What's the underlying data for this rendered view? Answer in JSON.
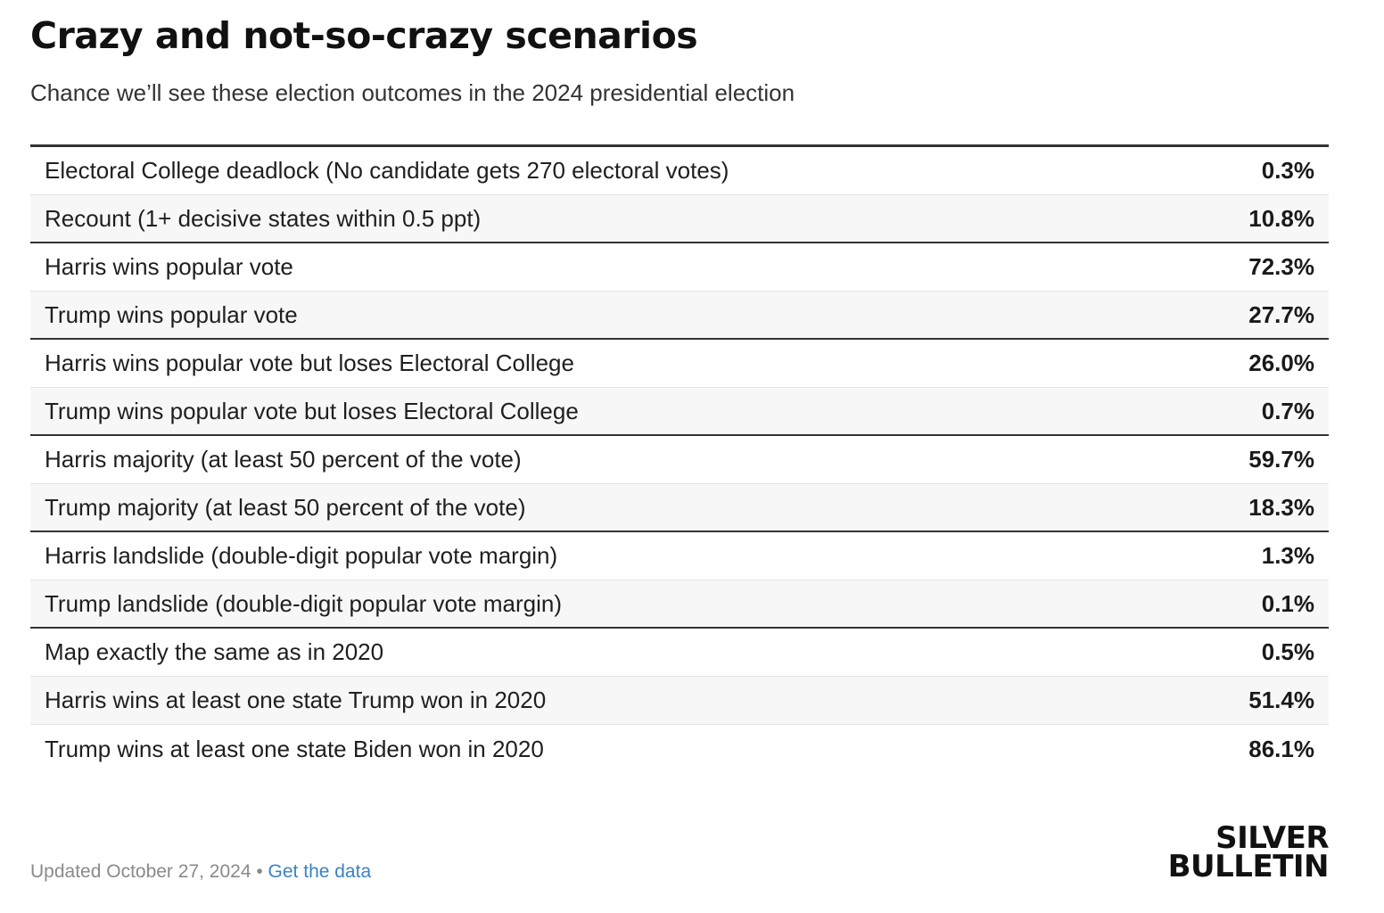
{
  "title": "Crazy and not-so-crazy scenarios",
  "subtitle": "Chance we’ll see these election outcomes in the 2024 presidential election",
  "footer": {
    "updated": "Updated October 27, 2024",
    "separator": " • ",
    "link_label": "Get the data"
  },
  "logo": {
    "line1": "SILVER",
    "line2": "BULLETIN"
  },
  "colors": {
    "link": "#3b82c4",
    "rule": "#333333",
    "alt_row": "#f7f7f7"
  },
  "chart_data": {
    "type": "table",
    "title": "Crazy and not-so-crazy scenarios",
    "subtitle": "Chance we’ll see these election outcomes in the 2024 presidential election",
    "rows": [
      {
        "label": "Electoral College deadlock (No candidate gets 270 electoral votes)",
        "value": "0.3%"
      },
      {
        "label": "Recount (1+ decisive states within 0.5 ppt)",
        "value": "10.8%"
      },
      {
        "label": "Harris wins popular vote",
        "value": "72.3%"
      },
      {
        "label": "Trump wins popular vote",
        "value": "27.7%"
      },
      {
        "label": "Harris wins popular vote but loses Electoral College",
        "value": "26.0%"
      },
      {
        "label": "Trump wins popular vote but loses Electoral College",
        "value": "0.7%"
      },
      {
        "label": "Harris majority (at least 50 percent of the vote)",
        "value": "59.7%"
      },
      {
        "label": "Trump majority (at least 50 percent of the vote)",
        "value": "18.3%"
      },
      {
        "label": "Harris landslide (double-digit popular vote margin)",
        "value": "1.3%"
      },
      {
        "label": "Trump landslide (double-digit popular vote margin)",
        "value": "0.1%"
      },
      {
        "label": "Map exactly the same as in 2020",
        "value": "0.5%"
      },
      {
        "label": "Harris wins at least one state Trump won in 2020",
        "value": "51.4%"
      },
      {
        "label": "Trump wins at least one state Biden won in 2020",
        "value": "86.1%"
      }
    ]
  }
}
